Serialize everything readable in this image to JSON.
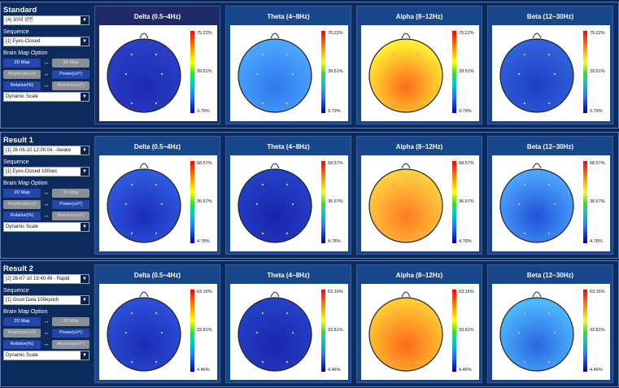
{
  "panels": [
    {
      "title": "Standard",
      "select_value": "(4) 30대 성인",
      "sequence_label": "Sequence",
      "sequence_value": "[1] Eyes-Closed",
      "option_label": "Brain Map Option",
      "btn_2d": "2D Map",
      "btn_3d": "3D Map",
      "btn_amp": "Amplitude(uV)",
      "btn_power": "Power(uV²)",
      "btn_rel": "Relative(%)",
      "btn_abs": "Absolute(uV²)",
      "scale_value": "Dynamic Scale",
      "scale": [
        "75.22%",
        "39.51%",
        "3.79%"
      ],
      "maps": [
        {
          "title": "Delta (0.5~4Hz)",
          "band": "delta"
        },
        {
          "title": "Theta (4~8Hz)",
          "band": "theta"
        },
        {
          "title": "Alpha (8~12Hz)",
          "band": "alpha"
        },
        {
          "title": "Beta (12~30Hz)",
          "band": "beta"
        }
      ]
    },
    {
      "title": "Result 1",
      "select_value": "[1] 26-06-10 12:00:04 - Awake",
      "sequence_label": "Sequence",
      "sequence_value": "[1] Eyes-Closed 180sec",
      "option_label": "Brain Map Option",
      "btn_2d": "2D Map",
      "btn_3d": "3D Map",
      "btn_amp": "Amplitude(uV)",
      "btn_power": "Power(uV²)",
      "btn_rel": "Relative(%)",
      "btn_abs": "Absolute(uV²)",
      "scale_value": "Dynamic Scale",
      "scale": [
        "68.57%",
        "36.67%",
        "4.78%"
      ],
      "maps": [
        {
          "title": "Delta (0.5~4Hz)",
          "band": "delta"
        },
        {
          "title": "Theta (4~8Hz)",
          "band": "theta"
        },
        {
          "title": "Alpha (8~12Hz)",
          "band": "alpha"
        },
        {
          "title": "Beta (12~30Hz)",
          "band": "beta"
        }
      ]
    },
    {
      "title": "Result 2",
      "select_value": "[2] 26-07-10 19:40:49 - Rapid",
      "sequence_label": "Sequence",
      "sequence_value": "[1] Good Data 100epoch",
      "option_label": "Brain Map Option",
      "btn_2d": "2D Map",
      "btn_3d": "3D Map",
      "btn_amp": "Amplitude(uV)",
      "btn_power": "Power(uV²)",
      "btn_rel": "Relative(%)",
      "btn_abs": "Absolute(uV²)",
      "scale_value": "Dynamic Scale",
      "scale": [
        "63.16%",
        "33.81%",
        "4.46%"
      ],
      "maps": [
        {
          "title": "Delta (0.5~4Hz)",
          "band": "delta"
        },
        {
          "title": "Theta (4~8Hz)",
          "band": "theta"
        },
        {
          "title": "Alpha (8~12Hz)",
          "band": "alpha"
        },
        {
          "title": "Beta (12~30Hz)",
          "band": "beta"
        }
      ]
    }
  ],
  "band_colors": {
    "standard": {
      "delta": [
        "#2a3ec8",
        "#1c2ab0"
      ],
      "theta": [
        "#4aa6ff",
        "#2f78ee"
      ],
      "alpha": [
        "#ffef33",
        "#ff6a1a"
      ],
      "beta": [
        "#2f62dc",
        "#1f3fc4"
      ]
    },
    "result1": {
      "delta": [
        "#2f5ae0",
        "#1c2cb8"
      ],
      "theta": [
        "#2340c8",
        "#1a24aa"
      ],
      "alpha": [
        "#ffd040",
        "#ff7a22"
      ],
      "beta": [
        "#4da4ff",
        "#1f52d8"
      ]
    },
    "result2": {
      "delta": [
        "#2b4ed8",
        "#1c2cb4"
      ],
      "theta": [
        "#2440c8",
        "#1b26ac"
      ],
      "alpha": [
        "#ffcc33",
        "#ff6a1a"
      ],
      "beta": [
        "#4dbaff",
        "#2a66e0"
      ]
    }
  }
}
